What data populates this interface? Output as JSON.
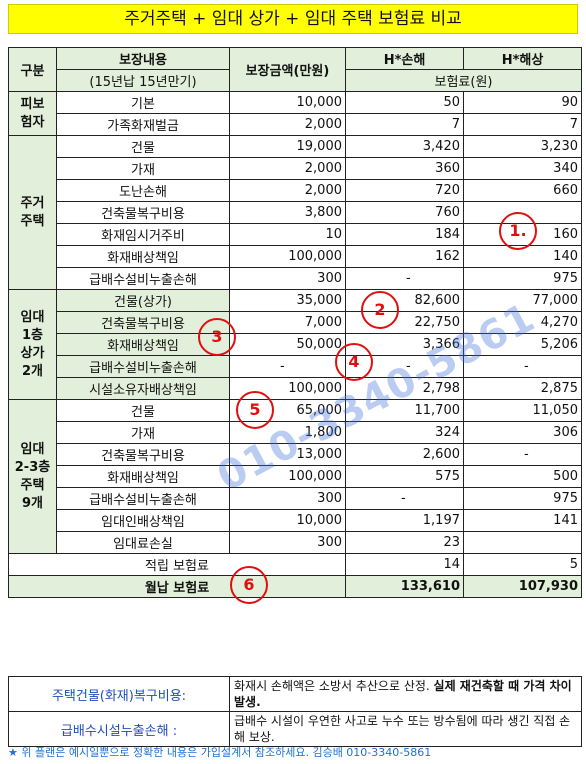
{
  "title": "주거주택 + 임대 상가 + 임대 주택 보험료 비교",
  "header": {
    "col_group": "구분",
    "col_coverage": "보장내용",
    "col_coverage_sub": "(15년납 15년만기)",
    "col_amount": "보장금액(만원)",
    "col_h1": "H*손해",
    "col_h2": "H*해상",
    "premium_unit": "보험료(원)"
  },
  "groups": [
    {
      "name": "피보험자",
      "rows": [
        {
          "item": "기본",
          "amount": "10,000",
          "h1": "50",
          "h2": "90"
        },
        {
          "item": "가족화재벌금",
          "amount": "2,000",
          "h1": "7",
          "h2": "7"
        }
      ]
    },
    {
      "name": "주거주택",
      "rows": [
        {
          "item": "건물",
          "amount": "19,000",
          "h1": "3,420",
          "h2": "3,230"
        },
        {
          "item": "가재",
          "amount": "2,000",
          "h1": "360",
          "h2": "340"
        },
        {
          "item": "도난손해",
          "amount": "2,000",
          "h1": "720",
          "h2": "660"
        },
        {
          "item": "건축물복구비용",
          "amount": "3,800",
          "h1": "760",
          "h2": ""
        },
        {
          "item": "화재임시거주비",
          "amount": "10",
          "h1": "184",
          "h2": "160"
        },
        {
          "item": "화재배상책임",
          "amount": "100,000",
          "h1": "162",
          "h2": "140"
        },
        {
          "item": "급배수설비누출손해",
          "amount": "300",
          "h1": "-",
          "h2": "975"
        }
      ]
    },
    {
      "name": "임대1층상가2개",
      "rows": [
        {
          "item": "건물(상가)",
          "amount": "35,000",
          "h1": "82,600",
          "h2": "77,000"
        },
        {
          "item": "건축물복구비용",
          "amount": "7,000",
          "h1": "22,750",
          "h2": "4,270"
        },
        {
          "item": "화재배상책임",
          "amount": "50,000",
          "h1": "3,366",
          "h2": "5,206"
        },
        {
          "item": "급배수설비누출손해",
          "amount": "-",
          "h1": "-",
          "h2": "-"
        },
        {
          "item": "시설소유자배상책임",
          "amount": "100,000",
          "h1": "2,798",
          "h2": "2,875"
        }
      ]
    },
    {
      "name": "임대2-3층주택9개",
      "rows": [
        {
          "item": "건물",
          "amount": "65,000",
          "h1": "11,700",
          "h2": "11,050"
        },
        {
          "item": "가재",
          "amount": "1,800",
          "h1": "324",
          "h2": "306"
        },
        {
          "item": "건축물복구비용",
          "amount": "13,000",
          "h1": "2,600",
          "h2": "-"
        },
        {
          "item": "화재배상책임",
          "amount": "100,000",
          "h1": "575",
          "h2": "500"
        },
        {
          "item": "급배수설비누출손해",
          "amount": "300",
          "h1": "-",
          "h2": "975"
        },
        {
          "item": "임대인배상책임",
          "amount": "10,000",
          "h1": "1,197",
          "h2": "141"
        },
        {
          "item": "임대료손실",
          "amount": "300",
          "h1": "23",
          "h2": ""
        }
      ]
    }
  ],
  "group_labels": {
    "g0_l1": "피보",
    "g0_l2": "험자",
    "g1_l1": "주거",
    "g1_l2": "주택",
    "g2_l1": "임대",
    "g2_l2": "1층",
    "g2_l3": "상가",
    "g2_l4": "2개",
    "g3_l1": "임대",
    "g3_l2": "2-3층",
    "g3_l3": "주택",
    "g3_l4": "9개"
  },
  "totals": {
    "saving_label": "적립 보험료",
    "saving_h1": "14",
    "saving_h2": "5",
    "monthly_label": "월납 보험료",
    "monthly_h1": "133,610",
    "monthly_h2": "107,930"
  },
  "notes": [
    {
      "label": "주택건물(화재)복구비용:",
      "text": "화재시 손해액은 소방서 추산으로 산정.",
      "text_bold": "실제 재건축할 때 가격 차이 발생."
    },
    {
      "label": "급배수시설누출손해 :",
      "text": "급배수 시설이 우연한 사고로 누수 또는 방수됨에 따라 생긴 직접 손해 보상.",
      "text_bold": ""
    }
  ],
  "footer": "★ 위 플랜은 예시일뿐으로 정확한 내용은 가입설계서 참조하세요. 김승배 010-3340-5861",
  "markers": [
    "1.",
    "2",
    "3",
    "4",
    "5",
    "6"
  ],
  "watermark": "010-3340-5861"
}
